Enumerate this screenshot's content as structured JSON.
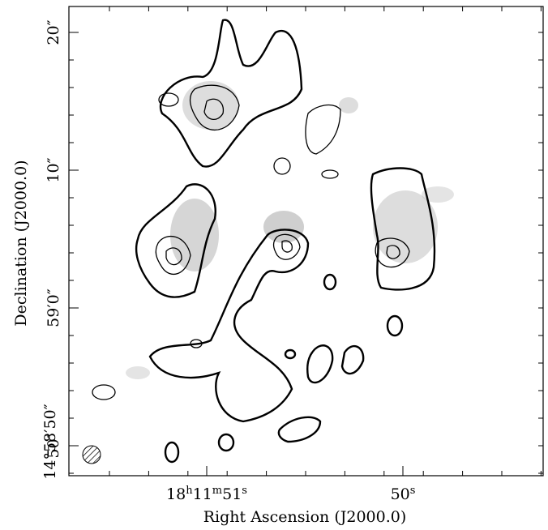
{
  "axes": {
    "x_label": "Right Ascension (J2000.0)",
    "y_label": "Declination (J2000.0)",
    "x_ticks": [
      {
        "parts": [
          "18",
          "h",
          "11",
          "m",
          "51",
          "s"
        ]
      },
      {
        "parts": [
          "50",
          "s"
        ]
      }
    ],
    "y_ticks": [
      "20″",
      "10″",
      "59′0″",
      "50″",
      "14°58′50″"
    ]
  }
}
